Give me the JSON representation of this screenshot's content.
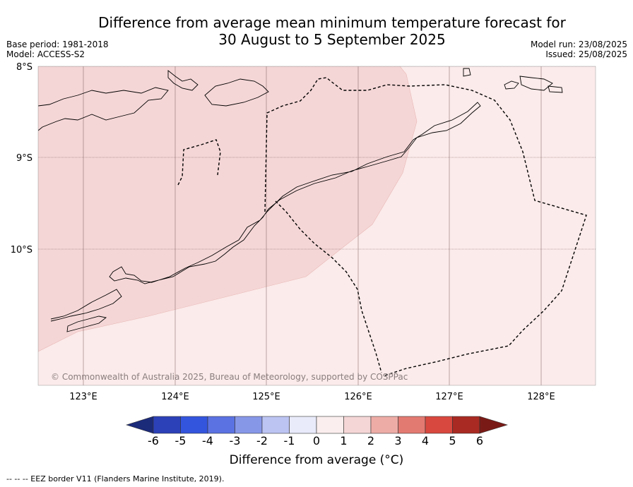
{
  "header": {
    "title_line1": "Difference from average mean minimum temperature forecast for",
    "title_line2": "30 August to 5 September 2025",
    "base_period": "Base period: 1981-2018",
    "model": "Model: ACCESS-S2",
    "model_run": "Model run: 23/08/2025",
    "issued": "Issued: 25/08/2025"
  },
  "map": {
    "lat_labels": [
      "8°S",
      "9°S",
      "10°S"
    ],
    "lon_labels": [
      "123°E",
      "124°E",
      "125°E",
      "126°E",
      "127°E",
      "128°E"
    ],
    "copyright": "© Commonwealth of Australia 2025, Bureau of Meteorology, supported by COSPPac",
    "regions": [
      {
        "range": "1 to 2",
        "color": "#f5d6d6"
      },
      {
        "range": "0 to 1",
        "color": "#fbebea"
      }
    ]
  },
  "colorbar": {
    "ticks": [
      "-6",
      "-5",
      "-4",
      "-3",
      "-2",
      "-1",
      "0",
      "1",
      "2",
      "3",
      "4",
      "5",
      "6"
    ],
    "colors": [
      "#1c2a7a",
      "#2c40b8",
      "#3355de",
      "#5a72e2",
      "#8797e8",
      "#bcc4f2",
      "#e9ebfb",
      "#fbeeee",
      "#f5d6d6",
      "#eeaca7",
      "#e37a72",
      "#d9483e",
      "#a92a22",
      "#7a1a16"
    ],
    "label": "Difference from average (°C)"
  },
  "footnote": "--  --  -- EEZ border V11 (Flanders Marine Institute, 2019)."
}
